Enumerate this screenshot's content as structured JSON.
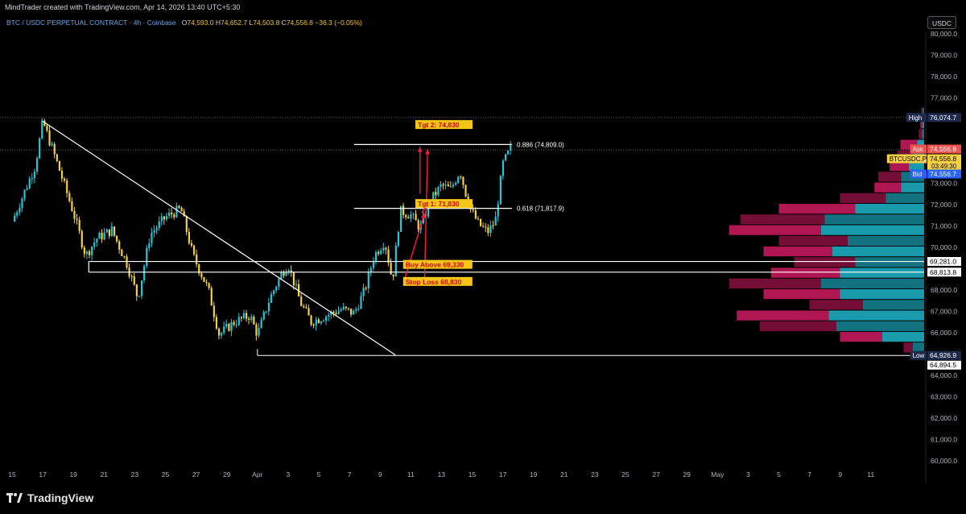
{
  "header": {
    "credit": "MindTrader created with TradingView.com, Apr 14, 2026 13:40 UTC+5:30",
    "symbol": "BTC / USDC PERPETUAL CONTRACT · 4h · Coinbase",
    "ohlc": {
      "o_label": "O",
      "o": "74,593.0",
      "h_label": "H",
      "h": "74,652.7",
      "l_label": "L",
      "l": "74,503.8",
      "c_label": "C",
      "c": "74,556.8",
      "change": "−36.3 (−0.05%)"
    },
    "currency_button": "USDC"
  },
  "footer": {
    "brand": "TradingView"
  },
  "colors": {
    "bull": "#26c6da",
    "bear": "#f5d142",
    "vp_buy": "#1aa3b5",
    "vp_sell": "#c2185b",
    "annotation": "#ff1744",
    "label_bg": "#f5c518"
  },
  "chart_data": {
    "type": "candlestick",
    "timeframe": "4h",
    "y_range": [
      59500,
      80900
    ],
    "y_ticks": [
      "80,000.0",
      "79,000.0",
      "78,000.0",
      "77,000.0",
      "73,000.0",
      "72,000.0",
      "71,000.0",
      "70,000.0",
      "68,000.0",
      "67,000.0",
      "66,000.0",
      "64,000.0",
      "63,000.0",
      "62,000.0",
      "61,000.0",
      "60,000.0"
    ],
    "x_tick_labels": [
      "15",
      "17",
      "19",
      "21",
      "23",
      "25",
      "27",
      "29",
      "Apr",
      "3",
      "5",
      "7",
      "9",
      "11",
      "13",
      "15",
      "17",
      "19",
      "21",
      "23",
      "25",
      "27",
      "29",
      "May",
      "3",
      "5",
      "7",
      "9",
      "11"
    ],
    "price_path": [
      [
        15,
        71200
      ],
      [
        16.5,
        73800
      ],
      [
        17,
        75900
      ],
      [
        18,
        73800
      ],
      [
        19,
        71600
      ],
      [
        19.8,
        69600
      ],
      [
        20.5,
        70400
      ],
      [
        21.5,
        70800
      ],
      [
        22.5,
        69200
      ],
      [
        23.2,
        67600
      ],
      [
        24,
        70600
      ],
      [
        25,
        71400
      ],
      [
        26,
        71800
      ],
      [
        26.8,
        69600
      ],
      [
        27.8,
        68000
      ],
      [
        28.5,
        65900
      ],
      [
        29.5,
        66500
      ],
      [
        30.5,
        66800
      ],
      [
        31,
        65900
      ],
      [
        31.8,
        67600
      ],
      [
        32.6,
        68800
      ],
      [
        33,
        69200
      ],
      [
        33.8,
        67400
      ],
      [
        34.5,
        66500
      ],
      [
        35.5,
        66800
      ],
      [
        36.5,
        67100
      ],
      [
        37.3,
        66900
      ],
      [
        38,
        68000
      ],
      [
        38.6,
        69600
      ],
      [
        39.3,
        70300
      ],
      [
        39.8,
        68400
      ],
      [
        40.3,
        71700
      ],
      [
        41,
        71500
      ],
      [
        41.6,
        70900
      ],
      [
        42.3,
        72200
      ],
      [
        43,
        72900
      ],
      [
        43.6,
        72700
      ],
      [
        44.2,
        73600
      ],
      [
        44.8,
        71900
      ],
      [
        45.4,
        71100
      ],
      [
        46,
        70700
      ],
      [
        46.5,
        71200
      ],
      [
        47,
        73900
      ],
      [
        47.5,
        74600
      ]
    ],
    "annotations": {
      "horizontal_levels": [
        {
          "label": "Buy Above 69,330",
          "value": 69330
        },
        {
          "label": "Stop Loss 68,830",
          "value": 68830
        },
        {
          "label": "Tgt 1: 71,830",
          "value": 71830
        },
        {
          "label": "Tgt 2: 74,830",
          "value": 74830
        }
      ],
      "fib_labels": [
        {
          "label": "0.886 (74,809.0)",
          "value": 74809
        },
        {
          "label": "0.618 (71,817.9)",
          "value": 71817.9
        }
      ],
      "trendline": {
        "from": [
          17,
          75900
        ],
        "to": [
          40,
          64950
        ]
      },
      "low_line": 64926.9
    },
    "price_tags": [
      {
        "label": "High",
        "value": "76,074.7",
        "price": 76074.7,
        "kind": "dark"
      },
      {
        "label": "Ask",
        "value": "74,556.8",
        "price": 74556.8,
        "kind": "red"
      },
      {
        "label": "BTCUSDC.P",
        "value": "74,556.8",
        "sub": "03:49:30",
        "price": 74556.8,
        "kind": "yellow"
      },
      {
        "label": "Bid",
        "value": "74,556.7",
        "price": 74556.7,
        "kind": "blue"
      },
      {
        "label": "",
        "value": "69,281.0",
        "price": 69281.0,
        "kind": "white"
      },
      {
        "label": "",
        "value": "68,813.8",
        "price": 68813.8,
        "kind": "white"
      },
      {
        "label": "Low",
        "value": "64,926.9",
        "price": 64926.9,
        "kind": "dark"
      },
      {
        "label": "",
        "value": "64,894.5",
        "price": 64894.5,
        "kind": "white"
      }
    ],
    "volume_profile": [
      {
        "price": 76300,
        "buy": 2,
        "sell": 2
      },
      {
        "price": 75800,
        "buy": 2,
        "sell": 3
      },
      {
        "price": 75300,
        "buy": 3,
        "sell": 4
      },
      {
        "price": 74800,
        "buy": 9,
        "sell": 22
      },
      {
        "price": 74300,
        "buy": 15,
        "sell": 20
      },
      {
        "price": 73800,
        "buy": 20,
        "sell": 25
      },
      {
        "price": 73300,
        "buy": 30,
        "sell": 30
      },
      {
        "price": 72800,
        "buy": 30,
        "sell": 35
      },
      {
        "price": 72300,
        "buy": 50,
        "sell": 60
      },
      {
        "price": 71800,
        "buy": 90,
        "sell": 100
      },
      {
        "price": 71300,
        "buy": 130,
        "sell": 110
      },
      {
        "price": 70800,
        "buy": 135,
        "sell": 120
      },
      {
        "price": 70300,
        "buy": 100,
        "sell": 90
      },
      {
        "price": 69800,
        "buy": 120,
        "sell": 90
      },
      {
        "price": 69300,
        "buy": 90,
        "sell": 80
      },
      {
        "price": 68800,
        "buy": 110,
        "sell": 90
      },
      {
        "price": 68300,
        "buy": 135,
        "sell": 120
      },
      {
        "price": 67800,
        "buy": 110,
        "sell": 100
      },
      {
        "price": 67300,
        "buy": 80,
        "sell": 70
      },
      {
        "price": 66800,
        "buy": 125,
        "sell": 120
      },
      {
        "price": 66300,
        "buy": 115,
        "sell": 100
      },
      {
        "price": 65800,
        "buy": 55,
        "sell": 55
      },
      {
        "price": 65300,
        "buy": 15,
        "sell": 12
      }
    ]
  }
}
